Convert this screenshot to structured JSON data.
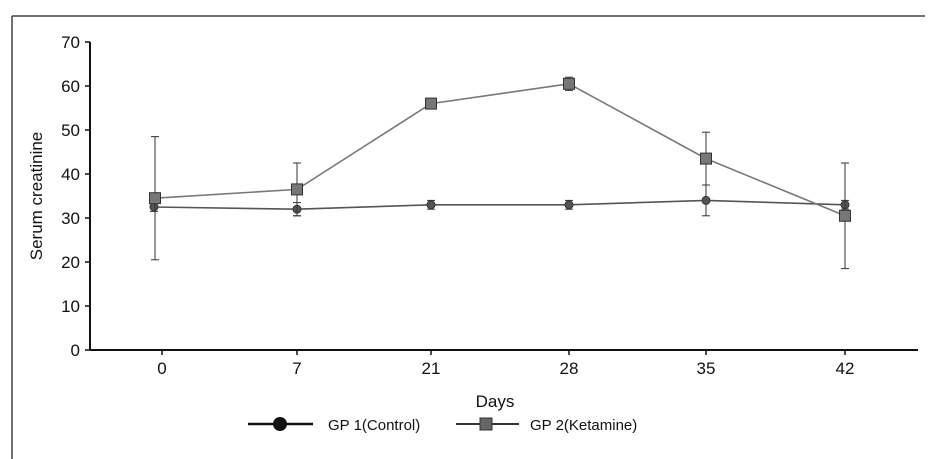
{
  "chart_data": {
    "type": "line",
    "title": "",
    "xlabel": "Days",
    "ylabel": "Serum creatinine",
    "categories": [
      "0",
      "7",
      "21",
      "28",
      "35",
      "42"
    ],
    "ylim": [
      0,
      70
    ],
    "yticks": [
      0,
      10,
      20,
      30,
      40,
      50,
      60,
      70
    ],
    "grid": false,
    "legend_position": "bottom-center",
    "series": [
      {
        "name": "GP 1(Control)",
        "marker": "circle",
        "color": "#555555",
        "values": [
          32.5,
          32,
          33,
          33,
          34,
          33
        ],
        "error": [
          1,
          1.5,
          1,
          1,
          3.5,
          1
        ]
      },
      {
        "name": "GP 2(Ketamine)",
        "marker": "square",
        "color": "#777777",
        "values": [
          34.5,
          36.5,
          56,
          60.5,
          43.5,
          30.5
        ],
        "error": [
          14,
          6,
          0.5,
          1.5,
          6,
          12
        ]
      }
    ]
  }
}
